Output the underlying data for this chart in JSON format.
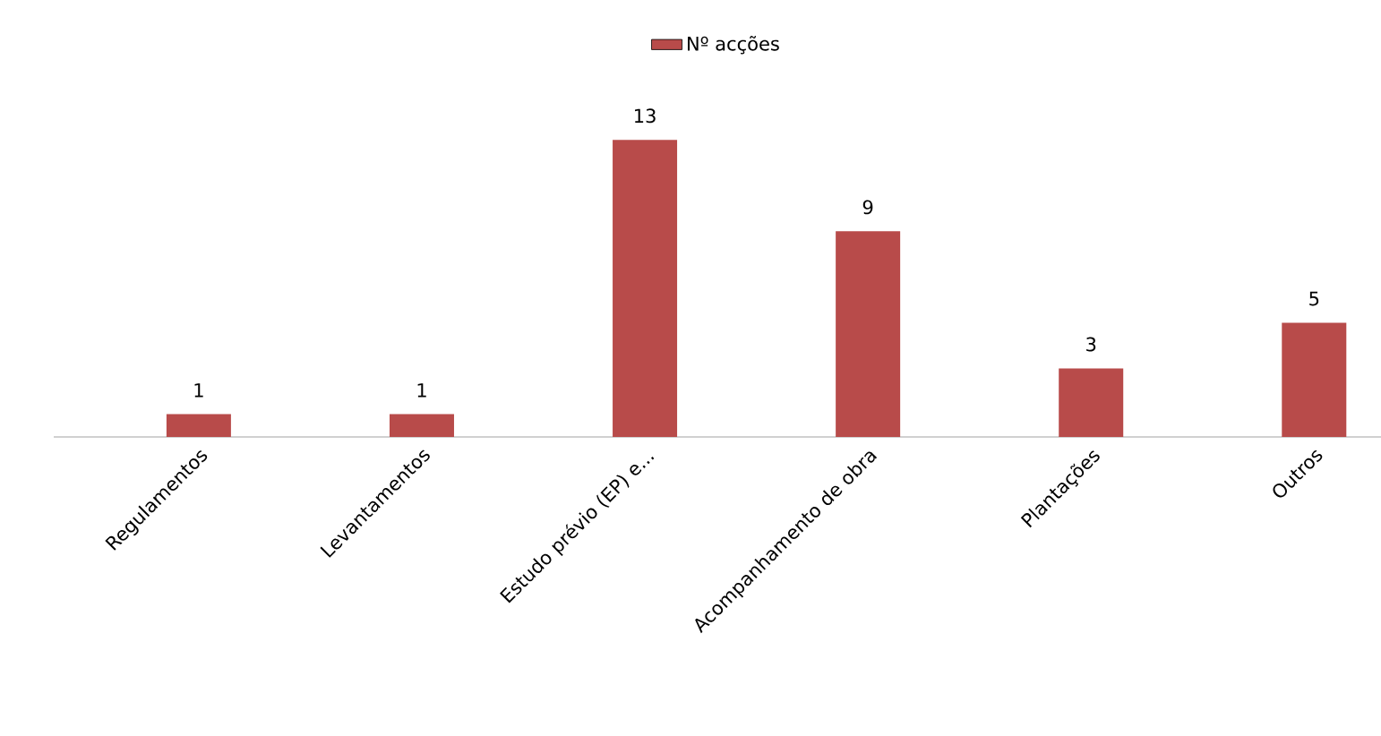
{
  "chart_data": {
    "type": "bar",
    "categories": [
      "Regulamentos",
      "Levantamentos",
      "Estudo prévio (EP) e...",
      "Acompanhamento de obra",
      "Plantações",
      "Outros"
    ],
    "series": [
      {
        "name": "Nº acções",
        "color": "#b84b4a",
        "values": [
          1,
          1,
          13,
          9,
          3,
          5
        ]
      }
    ],
    "data_labels": true,
    "legend": "top"
  }
}
